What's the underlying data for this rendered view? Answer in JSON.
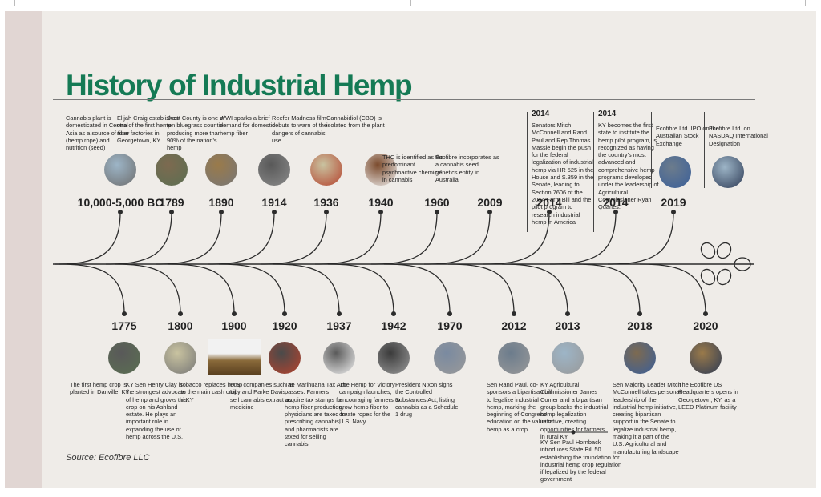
{
  "title": "History of Industrial Hemp",
  "source": "Source: Ecofibre LLC",
  "colors": {
    "title": "#157a55",
    "line": "#2b2b2b",
    "card": "#efece8"
  },
  "top_events": [
    {
      "year": "10,000-5,000 BC",
      "desc": "Cannabis plant is domesticated in Central Asia as a source of fiber (hemp rope) and nutrition (seed)",
      "image": "hemp-leaves-photo"
    },
    {
      "year": "1789",
      "desc": "Elijah Craig establishes one of the first hemp rope factories in Georgetown, KY",
      "image": "hemp-field-photo"
    },
    {
      "year": "1890",
      "desc": "Scott County is one of ten bluegrass counties producing more than 90% of the nation's hemp",
      "image": "harvest-photo"
    },
    {
      "year": "1914",
      "desc": "WWI sparks a brief demand for domestic hemp fiber",
      "image": "ww1-photo"
    },
    {
      "year": "1936",
      "desc": "Reefer Madness film debuts to warn of the dangers of cannabis use",
      "image": "reefer-madness-poster"
    },
    {
      "year": "1940",
      "desc": "Cannabidiol (CBD) is isolated from the plant",
      "image": "cbd-molecule"
    },
    {
      "year": "1960",
      "desc": "THC is identified as the predominant psychoactive chemical in cannabis",
      "image": ""
    },
    {
      "year": "2009",
      "desc": "Ecofibre incorporates as a cannabis seed genetics entity in Australia",
      "image": ""
    },
    {
      "year": "2014",
      "desc": "Senators Mitch McConnell and Rand Paul and Rep Thomas Massie begin the push for the federal legalization of industrial hemp via HR 525 in the House and S.359 in the Senate, leading to Section 7606 of the 2014 Farm Bill and the pilot program to research industrial hemp in America",
      "image": ""
    },
    {
      "year": "2014",
      "desc": "KY becomes the first state to institute the hemp pilot program, is recognized as having the country's most advanced and comprehensive hemp programs developed under the leadership of Agricultural Commissioner Ryan Quarles.",
      "image": ""
    },
    {
      "year": "2019",
      "desc": "Ecofibre Ltd. IPO on the Australian Stock Exchange",
      "image": "asx-photo"
    },
    {
      "year": "",
      "desc": "Ecofibre Ltd. on NASDAQ International Designation",
      "image": "nasdaq-photo"
    }
  ],
  "bottom_events": [
    {
      "year": "1775",
      "desc": "The first hemp crop is planted in Danville, KY",
      "image": "map-photo"
    },
    {
      "year": "1800",
      "desc": "KY Sen Henry Clay is the strongest advocate of hemp and grows this crop on his Ashland estate. He plays an important role in expanding the use of hemp across the U.S.",
      "image": "henry-clay-portrait"
    },
    {
      "year": "1900",
      "desc": "Tobacco replaces hemp as the main cash crop in KY",
      "image": "tobacco-photo"
    },
    {
      "year": "1920",
      "desc": "U.S. companies such as Lilly and Parke Davis sell cannabis extract as medicine",
      "image": "pharmacy-photo"
    },
    {
      "year": "1937",
      "desc": "The Marihuana Tax Act passes. Farmers acquire tax stamps for hemp fiber production, physicians are taxed for prescribing cannabis, and pharmacists are taxed for selling cannabis.",
      "image": "tax-stamp-photo"
    },
    {
      "year": "1942",
      "desc": "The Hemp for Victory campaign launches, encouraging farmers to grow hemp fiber to create ropes for the U.S. Navy",
      "image": "hemp-for-victory-poster"
    },
    {
      "year": "1970",
      "desc": "President Nixon signs the Controlled Substances Act, listing cannabis as a Schedule 1 drug",
      "image": "nixon-photo"
    },
    {
      "year": "2012",
      "desc": "Sen Rand Paul, co-sponsors a bipartisan bill to legalize industrial hemp, marking the beginning of Congress' education on the value of hemp as a crop.",
      "image": "rand-paul-photo"
    },
    {
      "year": "2013",
      "desc": "KY Agricultural Commissioner James Comer and a bipartisan group backs the industrial hemp legalization initiative, creating opportunities for farmers in rural KY",
      "image": "comer-photo"
    },
    {
      "year": "2018",
      "desc": "Sen Majority Leader Mitch McConnell takes personal leadership of the industrial hemp initiative, creating bipartisan support in the Senate to legalize industrial hemp, making it a part of the U.S. Agricultural and manufacturing landscape",
      "image": "mcconnell-photo"
    },
    {
      "year": "2020",
      "desc": "The Ecofibre US Headquarters opens in Georgetown, KY, as a LEED Platinum facility",
      "image": "hq-photo"
    }
  ],
  "extra_2013": "KY Sen Paul Hornback introduces State Bill 50 establishing the foundation for industrial hemp crop regulation if legalized by the federal government"
}
